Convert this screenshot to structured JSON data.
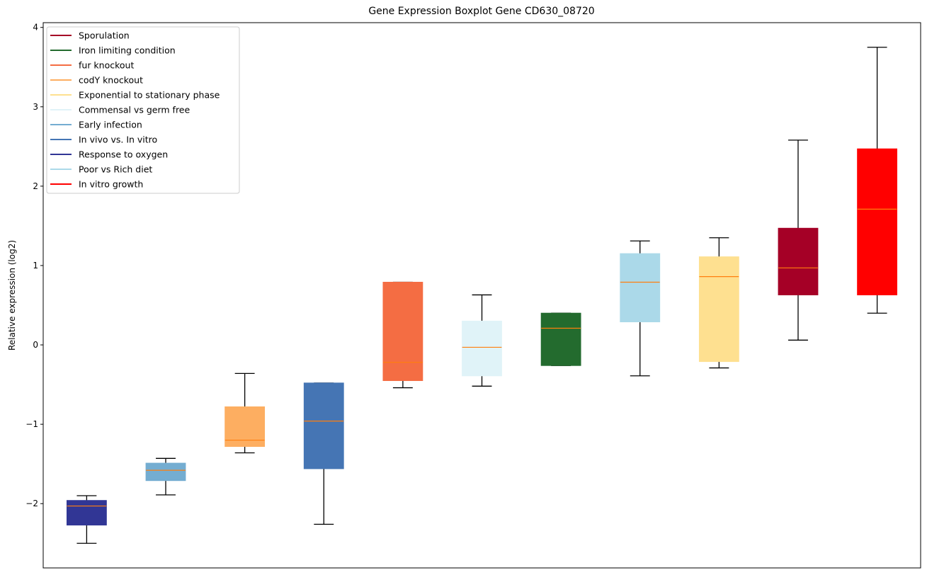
{
  "chart_data": {
    "type": "box",
    "title": "Gene Expression Boxplot Gene CD630_08720",
    "xlabel": "",
    "ylabel": "Relative expression (log2)",
    "ylim": [
      -2.81,
      4.06
    ],
    "yticks": [
      -2,
      -1,
      0,
      1,
      2,
      3,
      4
    ],
    "ytick_labels": [
      "−2",
      "−1",
      "0",
      "1",
      "2",
      "3",
      "4"
    ],
    "grid": false,
    "legend_position": "top-left",
    "median_color": "#ff7f0e",
    "legend": [
      {
        "label": "Sporulation",
        "color": "#a50026"
      },
      {
        "label": "Iron limiting condition",
        "color": "#236b2e"
      },
      {
        "label": "fur knockout",
        "color": "#f46d43"
      },
      {
        "label": "codY knockout",
        "color": "#fdae61"
      },
      {
        "label": "Exponential to stationary phase",
        "color": "#fee090"
      },
      {
        "label": "Commensal vs germ free",
        "color": "#e0f3f8"
      },
      {
        "label": "Early infection",
        "color": "#74add1"
      },
      {
        "label": "In vivo vs. In vitro",
        "color": "#4575b4"
      },
      {
        "label": "Response to oxygen",
        "color": "#313695"
      },
      {
        "label": "Poor vs Rich diet",
        "color": "#abd9e9"
      },
      {
        "label": "In vitro growth",
        "color": "#ff0000"
      }
    ],
    "boxes": [
      {
        "name": "Response to oxygen",
        "color": "#313695",
        "whisker_low": -2.5,
        "q1": -2.27,
        "median": -2.03,
        "q3": -1.96,
        "whisker_high": -1.9
      },
      {
        "name": "Early infection",
        "color": "#74add1",
        "whisker_low": -1.89,
        "q1": -1.71,
        "median": -1.58,
        "q3": -1.49,
        "whisker_high": -1.43
      },
      {
        "name": "codY knockout",
        "color": "#fdae61",
        "whisker_low": -1.36,
        "q1": -1.28,
        "median": -1.2,
        "q3": -0.78,
        "whisker_high": -0.36
      },
      {
        "name": "In vivo vs. In vitro",
        "color": "#4575b4",
        "whisker_low": -2.26,
        "q1": -1.56,
        "median": -0.96,
        "q3": -0.48,
        "whisker_high": -0.48
      },
      {
        "name": "fur knockout",
        "color": "#f46d43",
        "whisker_low": -0.54,
        "q1": -0.45,
        "median": -0.22,
        "q3": 0.79,
        "whisker_high": 0.79
      },
      {
        "name": "Commensal vs germ free",
        "color": "#e0f3f8",
        "whisker_low": -0.52,
        "q1": -0.39,
        "median": -0.03,
        "q3": 0.3,
        "whisker_high": 0.63
      },
      {
        "name": "Iron limiting condition",
        "color": "#236b2e",
        "whisker_low": -0.26,
        "q1": -0.26,
        "median": 0.21,
        "q3": 0.4,
        "whisker_high": 0.4
      },
      {
        "name": "Poor vs Rich diet",
        "color": "#abd9e9",
        "whisker_low": -0.39,
        "q1": 0.29,
        "median": 0.79,
        "q3": 1.15,
        "whisker_high": 1.31
      },
      {
        "name": "Exponential to stationary phase",
        "color": "#fee090",
        "whisker_low": -0.29,
        "q1": -0.21,
        "median": 0.86,
        "q3": 1.11,
        "whisker_high": 1.35
      },
      {
        "name": "Sporulation",
        "color": "#a50026",
        "whisker_low": 0.06,
        "q1": 0.63,
        "median": 0.97,
        "q3": 1.47,
        "whisker_high": 2.58
      },
      {
        "name": "In vitro growth",
        "color": "#ff0000",
        "whisker_low": 0.4,
        "q1": 0.63,
        "median": 1.71,
        "q3": 2.47,
        "whisker_high": 3.75
      }
    ]
  }
}
